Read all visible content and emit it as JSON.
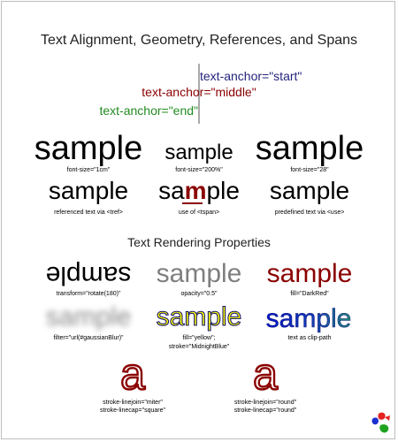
{
  "title": "Text Alignment, Geometry, References, and Spans",
  "anchors": {
    "start": "text-anchor=\"start\"",
    "middle": "text-anchor=\"middle\"",
    "end": "text-anchor=\"end\""
  },
  "colors": {
    "start": "#24247f",
    "middle": "#8b0000",
    "end": "#228b22",
    "border": "#bdbdbd",
    "darkred": "#8b0000",
    "yellow": "#ffff00",
    "midnightblue": "#191970",
    "gray": "#808080",
    "blue": "#0000cc",
    "teal": "#1f8a70",
    "green": "#1fa31f"
  },
  "sample_word": "sample",
  "sample_tspan": {
    "before": "sa",
    "highlight": "m",
    "after": "ple"
  },
  "row1": [
    {
      "caption": "font-size=\"1cm\""
    },
    {
      "caption": "font-size=\"200%\""
    },
    {
      "caption": "font-size=\"28\""
    }
  ],
  "row2": [
    {
      "caption": "referenced text via <tref>"
    },
    {
      "caption": "use of <tspan>"
    },
    {
      "caption": "predefined text via <use>"
    }
  ],
  "section2_title": "Text Rendering Properties",
  "row3": [
    {
      "caption": "transform=\"rotate(180)\""
    },
    {
      "caption": "opacity=\"0.5\""
    },
    {
      "caption": "fill=\"DarkRed\""
    }
  ],
  "row4": [
    {
      "caption": "filter=\"url(#gaussianBlur)\""
    },
    {
      "caption_line1": "fill=\"yellow\";",
      "caption_line2": "stroke=\"MidnightBlue\""
    },
    {
      "caption": "text as clip-path"
    }
  ],
  "glyph_char": "a",
  "row5": [
    {
      "caption_line1": "stroke-linejoin=\"miter\"",
      "caption_line2": "stroke-linecap=\"square\""
    },
    {
      "caption_line1": "stroke-linejoin=\"round\"",
      "caption_line2": "stroke-linecap=\"round\""
    }
  ],
  "logo_icon": "svg-logo-icon"
}
